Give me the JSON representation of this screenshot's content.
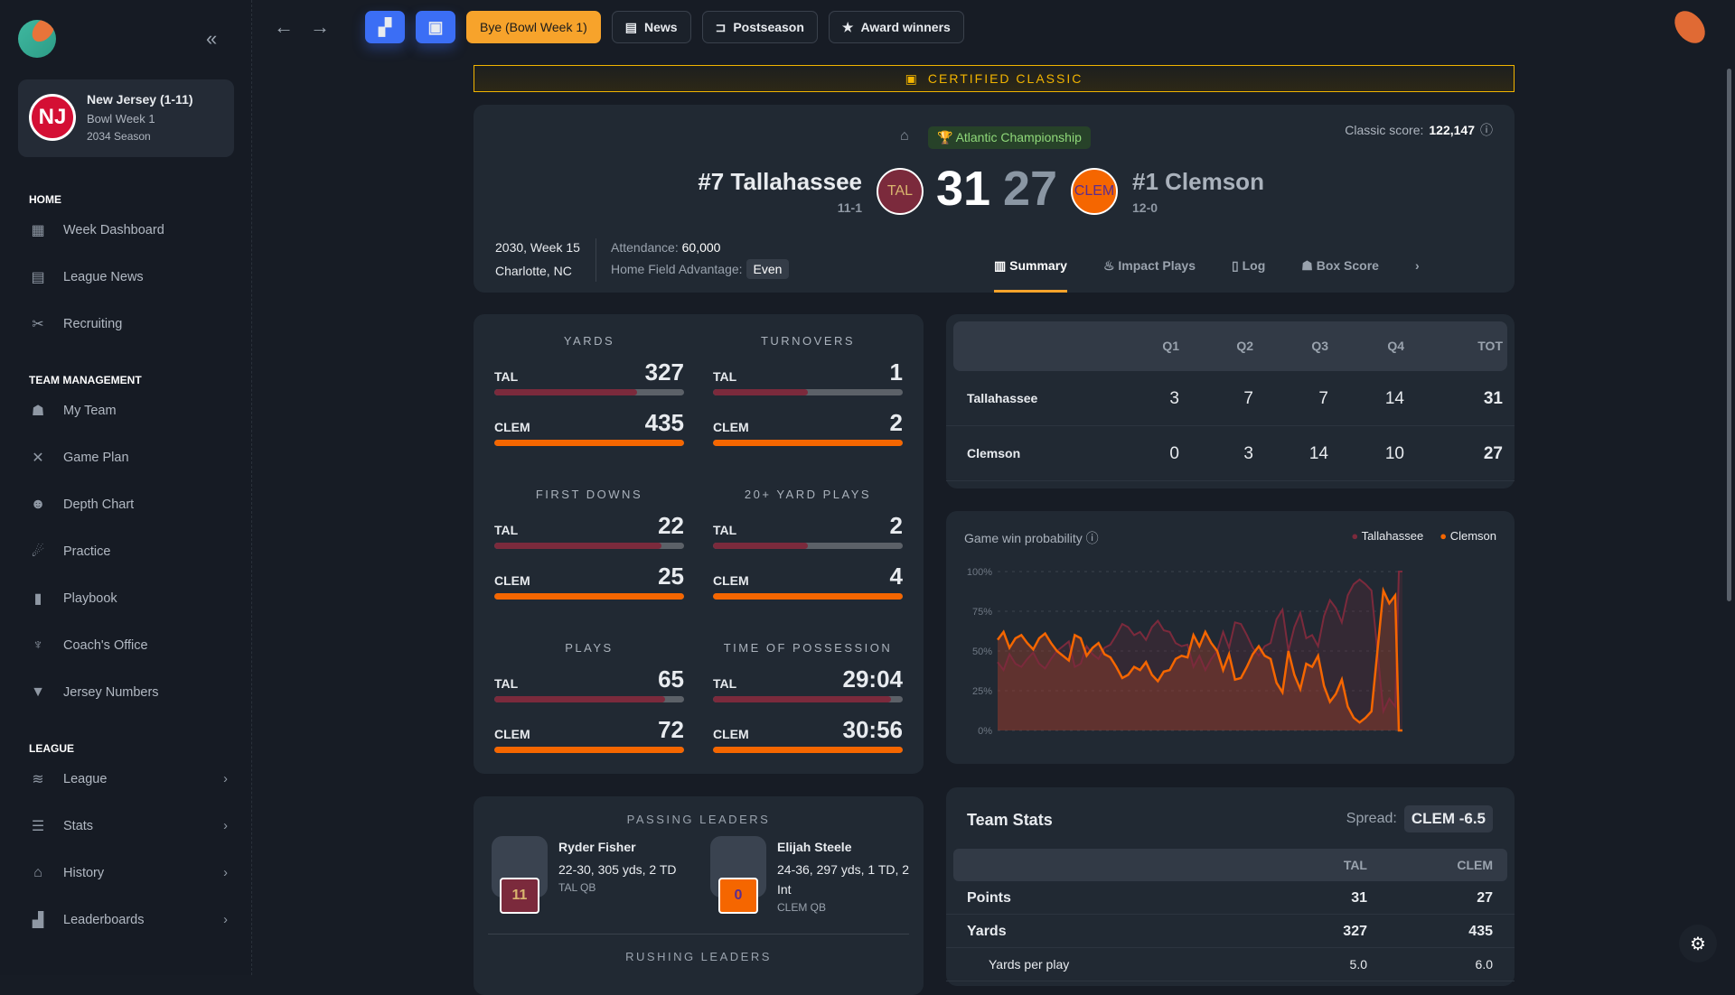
{
  "sidebar": {
    "collapse_icon": "double-chevron-left",
    "team": {
      "logo": "NJ",
      "name": "New Jersey (1-11)",
      "week": "Bowl Week 1",
      "season": "2034 Season"
    },
    "sections": [
      {
        "title": "HOME",
        "items": [
          {
            "label": "Week Dashboard",
            "icon": "▦"
          },
          {
            "label": "League News",
            "icon": "▤"
          },
          {
            "label": "Recruiting",
            "icon": "✂"
          }
        ]
      },
      {
        "title": "TEAM MANAGEMENT",
        "items": [
          {
            "label": "My Team",
            "icon": "☗"
          },
          {
            "label": "Game Plan",
            "icon": "✕"
          },
          {
            "label": "Depth Chart",
            "icon": "☻"
          },
          {
            "label": "Practice",
            "icon": "☄"
          },
          {
            "label": "Playbook",
            "icon": "▮"
          },
          {
            "label": "Coach's Office",
            "icon": "♆"
          },
          {
            "label": "Jersey Numbers",
            "icon": "▼"
          }
        ]
      },
      {
        "title": "LEAGUE",
        "items": [
          {
            "label": "League",
            "icon": "≋",
            "chevron": "›"
          },
          {
            "label": "Stats",
            "icon": "☰",
            "chevron": "›"
          },
          {
            "label": "History",
            "icon": "⌂",
            "chevron": "›"
          },
          {
            "label": "Leaderboards",
            "icon": "▟",
            "chevron": "›"
          }
        ]
      }
    ]
  },
  "topbar": {
    "back": "←",
    "forward": "→",
    "dashboard_icon": "▞",
    "calendar_icon": "▣",
    "bye": "Bye (Bowl Week 1)",
    "news": "News",
    "postseason": "Postseason",
    "awards": "Award winners"
  },
  "banner": "CERTIFIED CLASSIC",
  "game": {
    "conference": "Atlantic Championship",
    "classic_label": "Classic score:",
    "classic_score": "122,147",
    "home": {
      "name": "#7 Tallahassee",
      "abbr": "TAL",
      "record": "11-1",
      "score": "31",
      "color": "#7b2a3c",
      "text_color": "#d9b56e"
    },
    "away": {
      "name": "#1 Clemson",
      "abbr": "CLEM",
      "record": "12-0",
      "score": "27",
      "color": "#f56600",
      "text_color": "#5a2d91"
    },
    "date": "2030, Week 15",
    "location": "Charlotte, NC",
    "attendance_label": "Attendance:",
    "attendance": "60,000",
    "hfa_label": "Home Field Advantage:",
    "hfa": "Even",
    "tabs": [
      "Summary",
      "Impact Plays",
      "Log",
      "Box Score"
    ],
    "more": "›"
  },
  "comparison": [
    {
      "title": "YARDS",
      "tal": "327",
      "clem": "435",
      "tal_pct": 75,
      "clem_pct": 100
    },
    {
      "title": "TURNOVERS",
      "tal": "1",
      "clem": "2",
      "tal_pct": 50,
      "clem_pct": 100
    },
    {
      "title": "FIRST DOWNS",
      "tal": "22",
      "clem": "25",
      "tal_pct": 88,
      "clem_pct": 100
    },
    {
      "title": "20+ YARD PLAYS",
      "tal": "2",
      "clem": "4",
      "tal_pct": 50,
      "clem_pct": 100
    },
    {
      "title": "PLAYS",
      "tal": "65",
      "clem": "72",
      "tal_pct": 90,
      "clem_pct": 100
    },
    {
      "title": "TIME OF POSSESSION",
      "tal": "29:04",
      "clem": "30:56",
      "tal_pct": 94,
      "clem_pct": 100
    }
  ],
  "quarters": {
    "headers": [
      "Q1",
      "Q2",
      "Q3",
      "Q4",
      "TOT"
    ],
    "rows": [
      {
        "team": "Tallahassee",
        "scores": [
          "3",
          "7",
          "7",
          "14",
          "31"
        ]
      },
      {
        "team": "Clemson",
        "scores": [
          "0",
          "3",
          "14",
          "10",
          "27"
        ]
      }
    ]
  },
  "chart_data": {
    "type": "line",
    "title": "Game win probability",
    "yticks": [
      "100%",
      "75%",
      "50%",
      "25%",
      "0%"
    ],
    "ylim": [
      0,
      100
    ],
    "legend": "top-right",
    "series": [
      {
        "name": "Tallahassee",
        "color": "#7b2a3c"
      },
      {
        "name": "Clemson",
        "color": "#f56600",
        "values": [
          57,
          62,
          52,
          58,
          60,
          55,
          51,
          58,
          61,
          55,
          50,
          47,
          44,
          60,
          58,
          47,
          52,
          55,
          48,
          46,
          40,
          33,
          35,
          40,
          38,
          43,
          35,
          31,
          37,
          38,
          45,
          47,
          46,
          60,
          53,
          62,
          55,
          50,
          38,
          48,
          32,
          33,
          40,
          48,
          53,
          47,
          45,
          30,
          24,
          50,
          35,
          26,
          42,
          40,
          47,
          28,
          18,
          23,
          32,
          15,
          8,
          5,
          8,
          12,
          50,
          88,
          80,
          85,
          0
        ]
      }
    ]
  },
  "leaders": {
    "passing_title": "PASSING LEADERS",
    "rushing_title": "RUSHING LEADERS",
    "passing": [
      {
        "name": "Ryder Fisher",
        "line": "22-30, 305 yds, 2 TD",
        "pos": "TAL QB",
        "number": "11"
      },
      {
        "name": "Elijah Steele",
        "line": "24-36, 297 yds, 1 TD, 2 Int",
        "pos": "CLEM QB",
        "number": "0"
      }
    ]
  },
  "team_stats": {
    "title": "Team Stats",
    "spread_label": "Spread:",
    "spread": "CLEM -6.5",
    "headers": [
      "TAL",
      "CLEM"
    ],
    "rows": [
      {
        "label": "Points",
        "tal": "31",
        "clem": "27"
      },
      {
        "label": "Yards",
        "tal": "327",
        "clem": "435"
      },
      {
        "label": "Yards per play",
        "tal": "5.0",
        "clem": "6.0"
      }
    ]
  },
  "settings_icon": "⚙"
}
